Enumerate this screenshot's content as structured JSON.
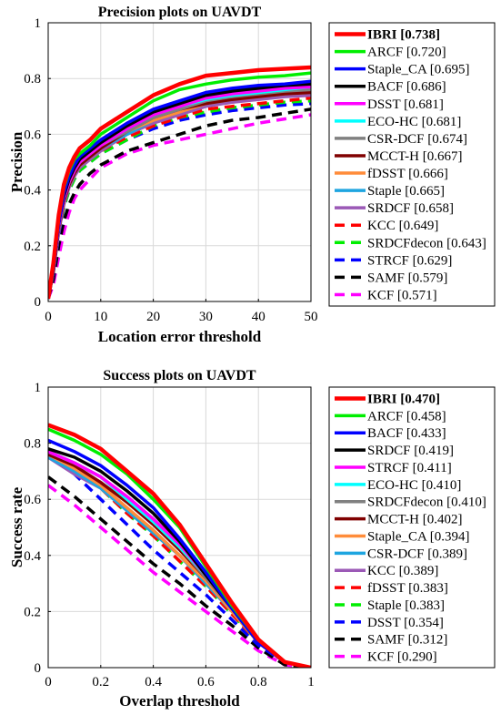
{
  "chart_data": [
    {
      "type": "line",
      "title": "Precision plots on UAVDT",
      "xlabel": "Location error threshold",
      "ylabel": "Precision",
      "xlim": [
        0,
        50
      ],
      "ylim": [
        0,
        1
      ],
      "xticks": [
        "0",
        "10",
        "20",
        "30",
        "40",
        "50"
      ],
      "yticks": [
        "0",
        "0.2",
        "0.4",
        "0.6",
        "0.8",
        "1"
      ],
      "grid": true,
      "legend_position": "outside-right",
      "x": [
        0,
        1,
        2,
        3,
        4,
        5,
        6,
        8,
        10,
        15,
        20,
        25,
        30,
        35,
        40,
        45,
        50
      ],
      "series": [
        {
          "name": "IBRI [0.738]",
          "color": "#ff0000",
          "style": "solid",
          "bold": true,
          "values": [
            0.01,
            0.14,
            0.31,
            0.42,
            0.48,
            0.52,
            0.55,
            0.58,
            0.62,
            0.68,
            0.74,
            0.78,
            0.81,
            0.82,
            0.83,
            0.835,
            0.84
          ]
        },
        {
          "name": "ARCF [0.720]",
          "color": "#00ee00",
          "style": "solid",
          "values": [
            0.01,
            0.13,
            0.3,
            0.41,
            0.47,
            0.51,
            0.53,
            0.56,
            0.6,
            0.66,
            0.72,
            0.76,
            0.78,
            0.795,
            0.805,
            0.81,
            0.82
          ]
        },
        {
          "name": "Staple_CA [0.695]",
          "color": "#0000ff",
          "style": "solid",
          "values": [
            0.01,
            0.12,
            0.28,
            0.39,
            0.45,
            0.49,
            0.52,
            0.55,
            0.58,
            0.64,
            0.69,
            0.72,
            0.75,
            0.765,
            0.775,
            0.78,
            0.79
          ]
        },
        {
          "name": "BACF [0.686]",
          "color": "#000000",
          "style": "solid",
          "values": [
            0.01,
            0.12,
            0.28,
            0.38,
            0.44,
            0.48,
            0.51,
            0.54,
            0.57,
            0.63,
            0.68,
            0.71,
            0.74,
            0.755,
            0.765,
            0.775,
            0.78
          ]
        },
        {
          "name": "DSST [0.681]",
          "color": "#ff00ff",
          "style": "solid",
          "values": [
            0.01,
            0.12,
            0.27,
            0.37,
            0.43,
            0.47,
            0.5,
            0.53,
            0.56,
            0.62,
            0.67,
            0.7,
            0.73,
            0.745,
            0.755,
            0.765,
            0.77
          ]
        },
        {
          "name": "ECO-HC [0.681]",
          "color": "#00ffff",
          "style": "solid",
          "values": [
            0.01,
            0.12,
            0.27,
            0.37,
            0.43,
            0.47,
            0.5,
            0.53,
            0.56,
            0.62,
            0.67,
            0.7,
            0.725,
            0.74,
            0.75,
            0.76,
            0.77
          ]
        },
        {
          "name": "CSR-DCF [0.674]",
          "color": "#808080",
          "style": "solid",
          "values": [
            0.01,
            0.12,
            0.27,
            0.37,
            0.43,
            0.47,
            0.5,
            0.53,
            0.56,
            0.61,
            0.66,
            0.69,
            0.72,
            0.735,
            0.745,
            0.755,
            0.76
          ]
        },
        {
          "name": "MCCT-H [0.667]",
          "color": "#800000",
          "style": "solid",
          "values": [
            0.01,
            0.11,
            0.26,
            0.36,
            0.42,
            0.46,
            0.49,
            0.52,
            0.55,
            0.61,
            0.66,
            0.69,
            0.71,
            0.725,
            0.735,
            0.745,
            0.75
          ]
        },
        {
          "name": "fDSST [0.666]",
          "color": "#ff8c3a",
          "style": "solid",
          "values": [
            0.01,
            0.11,
            0.26,
            0.36,
            0.42,
            0.46,
            0.49,
            0.52,
            0.55,
            0.61,
            0.65,
            0.68,
            0.71,
            0.725,
            0.735,
            0.745,
            0.75
          ]
        },
        {
          "name": "Staple [0.665]",
          "color": "#1ea5e0",
          "style": "solid",
          "values": [
            0.01,
            0.11,
            0.26,
            0.36,
            0.42,
            0.46,
            0.49,
            0.52,
            0.55,
            0.6,
            0.65,
            0.68,
            0.71,
            0.725,
            0.735,
            0.745,
            0.75
          ]
        },
        {
          "name": "SRDCF [0.658]",
          "color": "#9b59b6",
          "style": "solid",
          "values": [
            0.01,
            0.11,
            0.25,
            0.35,
            0.41,
            0.45,
            0.48,
            0.51,
            0.54,
            0.6,
            0.64,
            0.67,
            0.7,
            0.715,
            0.725,
            0.735,
            0.74
          ]
        },
        {
          "name": "KCC [0.649]",
          "color": "#ff0000",
          "style": "dashed",
          "values": [
            0.01,
            0.11,
            0.25,
            0.35,
            0.41,
            0.45,
            0.48,
            0.51,
            0.54,
            0.59,
            0.63,
            0.66,
            0.69,
            0.7,
            0.71,
            0.72,
            0.73
          ]
        },
        {
          "name": "SRDCFdecon [0.643]",
          "color": "#00ee00",
          "style": "dashed",
          "values": [
            0.01,
            0.11,
            0.25,
            0.34,
            0.4,
            0.44,
            0.47,
            0.5,
            0.53,
            0.58,
            0.63,
            0.66,
            0.68,
            0.695,
            0.705,
            0.715,
            0.72
          ]
        },
        {
          "name": "STRCF [0.629]",
          "color": "#0000ff",
          "style": "dashed",
          "values": [
            0.01,
            0.1,
            0.24,
            0.34,
            0.4,
            0.44,
            0.47,
            0.5,
            0.53,
            0.58,
            0.62,
            0.65,
            0.67,
            0.685,
            0.695,
            0.705,
            0.71
          ]
        },
        {
          "name": "SAMF [0.579]",
          "color": "#000000",
          "style": "dashed",
          "values": [
            0.01,
            0.08,
            0.2,
            0.29,
            0.35,
            0.39,
            0.42,
            0.46,
            0.49,
            0.54,
            0.57,
            0.6,
            0.63,
            0.65,
            0.66,
            0.675,
            0.69
          ]
        },
        {
          "name": "KCF [0.571]",
          "color": "#ff00ff",
          "style": "dashed",
          "values": [
            0.01,
            0.06,
            0.16,
            0.25,
            0.32,
            0.37,
            0.4,
            0.44,
            0.48,
            0.53,
            0.56,
            0.58,
            0.6,
            0.62,
            0.64,
            0.655,
            0.67
          ]
        }
      ]
    },
    {
      "type": "line",
      "title": "Success plots on UAVDT",
      "xlabel": "Overlap threshold",
      "ylabel": "Success rate",
      "xlim": [
        0,
        1
      ],
      "ylim": [
        0,
        1
      ],
      "xticks": [
        "0",
        "0.2",
        "0.4",
        "0.6",
        "0.8",
        "1"
      ],
      "yticks": [
        "0",
        "0.2",
        "0.4",
        "0.6",
        "0.8",
        "1"
      ],
      "grid": true,
      "legend_position": "outside-right",
      "x": [
        0,
        0.1,
        0.2,
        0.3,
        0.4,
        0.5,
        0.6,
        0.7,
        0.8,
        0.9,
        1.0
      ],
      "series": [
        {
          "name": "IBRI [0.470]",
          "color": "#ff0000",
          "style": "solid",
          "bold": true,
          "values": [
            0.865,
            0.83,
            0.78,
            0.7,
            0.62,
            0.51,
            0.37,
            0.23,
            0.1,
            0.02,
            0.0
          ]
        },
        {
          "name": "ARCF [0.458]",
          "color": "#00ee00",
          "style": "solid",
          "values": [
            0.85,
            0.81,
            0.76,
            0.69,
            0.6,
            0.5,
            0.36,
            0.22,
            0.1,
            0.02,
            0.0
          ]
        },
        {
          "name": "BACF [0.433]",
          "color": "#0000ff",
          "style": "solid",
          "values": [
            0.81,
            0.77,
            0.72,
            0.65,
            0.57,
            0.46,
            0.34,
            0.21,
            0.09,
            0.02,
            0.0
          ]
        },
        {
          "name": "SRDCF [0.419]",
          "color": "#000000",
          "style": "solid",
          "values": [
            0.78,
            0.75,
            0.7,
            0.63,
            0.55,
            0.45,
            0.33,
            0.21,
            0.09,
            0.02,
            0.0
          ]
        },
        {
          "name": "STRCF [0.411]",
          "color": "#ff00ff",
          "style": "solid",
          "values": [
            0.77,
            0.73,
            0.68,
            0.61,
            0.53,
            0.44,
            0.33,
            0.21,
            0.09,
            0.02,
            0.0
          ]
        },
        {
          "name": "ECO-HC [0.410]",
          "color": "#00ffff",
          "style": "solid",
          "values": [
            0.77,
            0.73,
            0.68,
            0.6,
            0.52,
            0.43,
            0.33,
            0.22,
            0.1,
            0.02,
            0.0
          ]
        },
        {
          "name": "SRDCFdecon [0.410]",
          "color": "#808080",
          "style": "solid",
          "values": [
            0.77,
            0.73,
            0.68,
            0.6,
            0.52,
            0.43,
            0.32,
            0.21,
            0.09,
            0.02,
            0.0
          ]
        },
        {
          "name": "MCCT-H [0.402]",
          "color": "#800000",
          "style": "solid",
          "values": [
            0.76,
            0.72,
            0.66,
            0.59,
            0.51,
            0.42,
            0.32,
            0.21,
            0.09,
            0.02,
            0.0
          ]
        },
        {
          "name": "Staple_CA [0.394]",
          "color": "#ff8c3a",
          "style": "solid",
          "values": [
            0.76,
            0.71,
            0.65,
            0.57,
            0.49,
            0.4,
            0.31,
            0.2,
            0.09,
            0.02,
            0.0
          ]
        },
        {
          "name": "CSR-DCF [0.389]",
          "color": "#1ea5e0",
          "style": "solid",
          "values": [
            0.75,
            0.7,
            0.64,
            0.56,
            0.48,
            0.4,
            0.3,
            0.2,
            0.09,
            0.02,
            0.0
          ]
        },
        {
          "name": "KCC [0.389]",
          "color": "#9b59b6",
          "style": "solid",
          "values": [
            0.75,
            0.69,
            0.64,
            0.56,
            0.48,
            0.4,
            0.3,
            0.2,
            0.09,
            0.02,
            0.0
          ]
        },
        {
          "name": "fDSST [0.383]",
          "color": "#ff0000",
          "style": "dashed",
          "values": [
            0.77,
            0.71,
            0.64,
            0.55,
            0.47,
            0.38,
            0.29,
            0.19,
            0.09,
            0.02,
            0.0
          ]
        },
        {
          "name": "Staple [0.383]",
          "color": "#00ee00",
          "style": "dashed",
          "values": [
            0.76,
            0.71,
            0.64,
            0.55,
            0.47,
            0.38,
            0.29,
            0.19,
            0.09,
            0.02,
            0.0
          ]
        },
        {
          "name": "DSST [0.354]",
          "color": "#0000ff",
          "style": "dashed",
          "values": [
            0.77,
            0.69,
            0.6,
            0.51,
            0.42,
            0.34,
            0.26,
            0.17,
            0.08,
            0.02,
            0.0
          ]
        },
        {
          "name": "SAMF [0.312]",
          "color": "#000000",
          "style": "dashed",
          "values": [
            0.68,
            0.61,
            0.53,
            0.45,
            0.37,
            0.3,
            0.22,
            0.15,
            0.07,
            0.01,
            0.0
          ]
        },
        {
          "name": "KCF [0.290]",
          "color": "#ff00ff",
          "style": "dashed",
          "values": [
            0.65,
            0.58,
            0.5,
            0.42,
            0.34,
            0.27,
            0.2,
            0.13,
            0.06,
            0.01,
            0.0
          ]
        }
      ]
    }
  ]
}
